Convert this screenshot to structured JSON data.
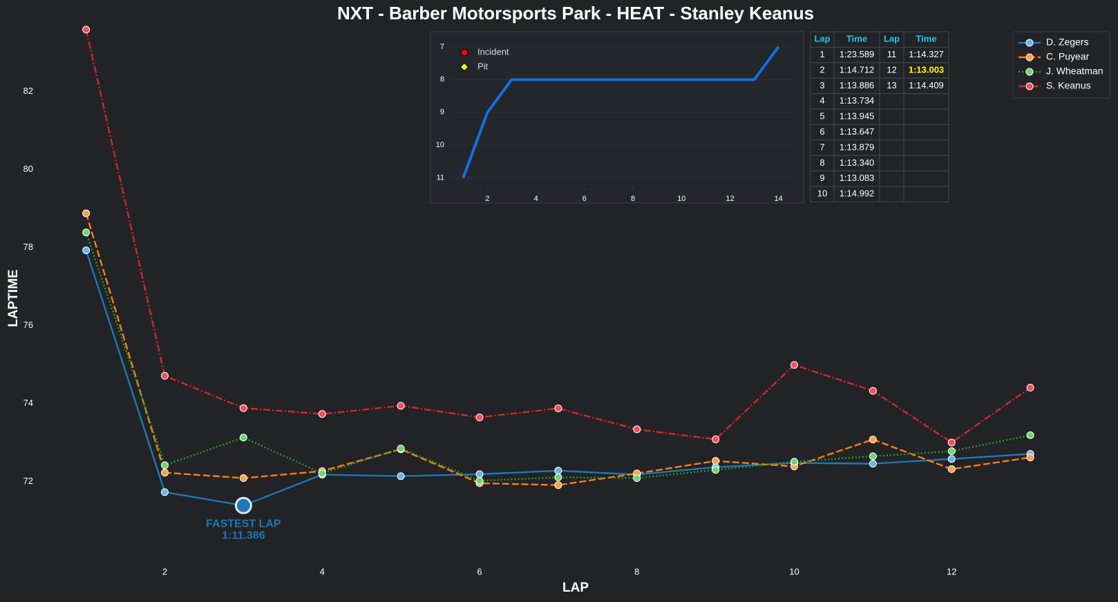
{
  "chart_data": [
    {
      "type": "line",
      "title": "NXT - Barber Motorsports Park - HEAT - Stanley Keanus",
      "xlabel": "LAP",
      "ylabel": "LAPTIME",
      "x": [
        1,
        2,
        3,
        4,
        5,
        6,
        7,
        8,
        9,
        10,
        11,
        12,
        13
      ],
      "series": [
        {
          "name": "D. Zegers",
          "color": "#1f77b4",
          "marker_color": "#6ab4ec",
          "linestyle": "solid",
          "values": [
            77.93,
            71.73,
            71.386,
            72.18,
            72.14,
            72.19,
            72.28,
            72.18,
            72.37,
            72.48,
            72.46,
            72.58,
            72.71
          ]
        },
        {
          "name": "C. Puyear",
          "color": "#ff7f0e",
          "marker_color": "#ff9f45",
          "linestyle": "dashed",
          "values": [
            78.88,
            72.23,
            72.09,
            72.27,
            72.83,
            71.96,
            71.91,
            72.21,
            72.53,
            72.39,
            73.08,
            72.32,
            72.62
          ]
        },
        {
          "name": "J. Wheatman",
          "color": "#2ca02c",
          "marker_color": "#6ed66e",
          "linestyle": "dotted",
          "values": [
            78.39,
            72.42,
            73.13,
            72.21,
            72.85,
            72.02,
            72.11,
            72.09,
            72.3,
            72.51,
            72.65,
            72.78,
            73.19
          ]
        },
        {
          "name": "S. Keanus",
          "color": "#d62728",
          "marker_color": "#f0505a",
          "linestyle": "dashdot",
          "values": [
            83.589,
            74.712,
            73.886,
            73.734,
            73.945,
            73.647,
            73.879,
            73.34,
            73.083,
            74.992,
            74.327,
            73.003,
            74.409
          ]
        }
      ],
      "xlim": [
        0.45,
        13.57
      ],
      "ylim": [
        70.4,
        83.8
      ],
      "xticks": [
        2,
        4,
        6,
        8,
        10,
        12
      ],
      "yticks": [
        72,
        74,
        76,
        78,
        80,
        82
      ],
      "legend": "upper right",
      "annotation": {
        "x": 3,
        "y": 71.386,
        "text": "FASTEST LAP",
        "value_label": "1:11.386",
        "color": "#1f77b4"
      }
    },
    {
      "type": "line",
      "x": [
        1,
        2,
        3,
        4,
        5,
        6,
        7,
        8,
        9,
        10,
        11,
        12,
        13,
        14
      ],
      "series": [
        {
          "color": "#1070e0",
          "values": [
            11,
            9,
            8,
            8,
            8,
            8,
            8,
            8,
            8,
            8,
            8,
            8,
            8,
            7
          ]
        }
      ],
      "xlim": [
        0.45,
        14.55
      ],
      "ylim": [
        11.3,
        6.75
      ],
      "xticks": [
        2,
        4,
        6,
        8,
        10,
        12,
        14
      ],
      "yticks": [
        7,
        8,
        9,
        10,
        11
      ],
      "grid": true,
      "legend_items": [
        {
          "name": "Incident",
          "color": "#ff0000",
          "marker": "circle"
        },
        {
          "name": "Pit",
          "color": "#ffff00",
          "marker": "diamond"
        }
      ]
    }
  ],
  "table": {
    "header": [
      "Lap",
      "Time",
      "Lap",
      "Time"
    ],
    "rows": [
      [
        "1",
        "1:23.589",
        "11",
        "1:14.327"
      ],
      [
        "2",
        "1:14.712",
        "12",
        "1:13.003"
      ],
      [
        "3",
        "1:13.886",
        "13",
        "1:14.409"
      ],
      [
        "4",
        "1:13.734"
      ],
      [
        "5",
        "1:13.945"
      ],
      [
        "6",
        "1:13.647"
      ],
      [
        "7",
        "1:13.879"
      ],
      [
        "8",
        "1:13.340"
      ],
      [
        "9",
        "1:13.083"
      ],
      [
        "10",
        "1:14.992"
      ]
    ],
    "highlight_cell": [
      1,
      3
    ],
    "header_color": "#1ec8f0",
    "highlight_color": "#ffff00"
  }
}
